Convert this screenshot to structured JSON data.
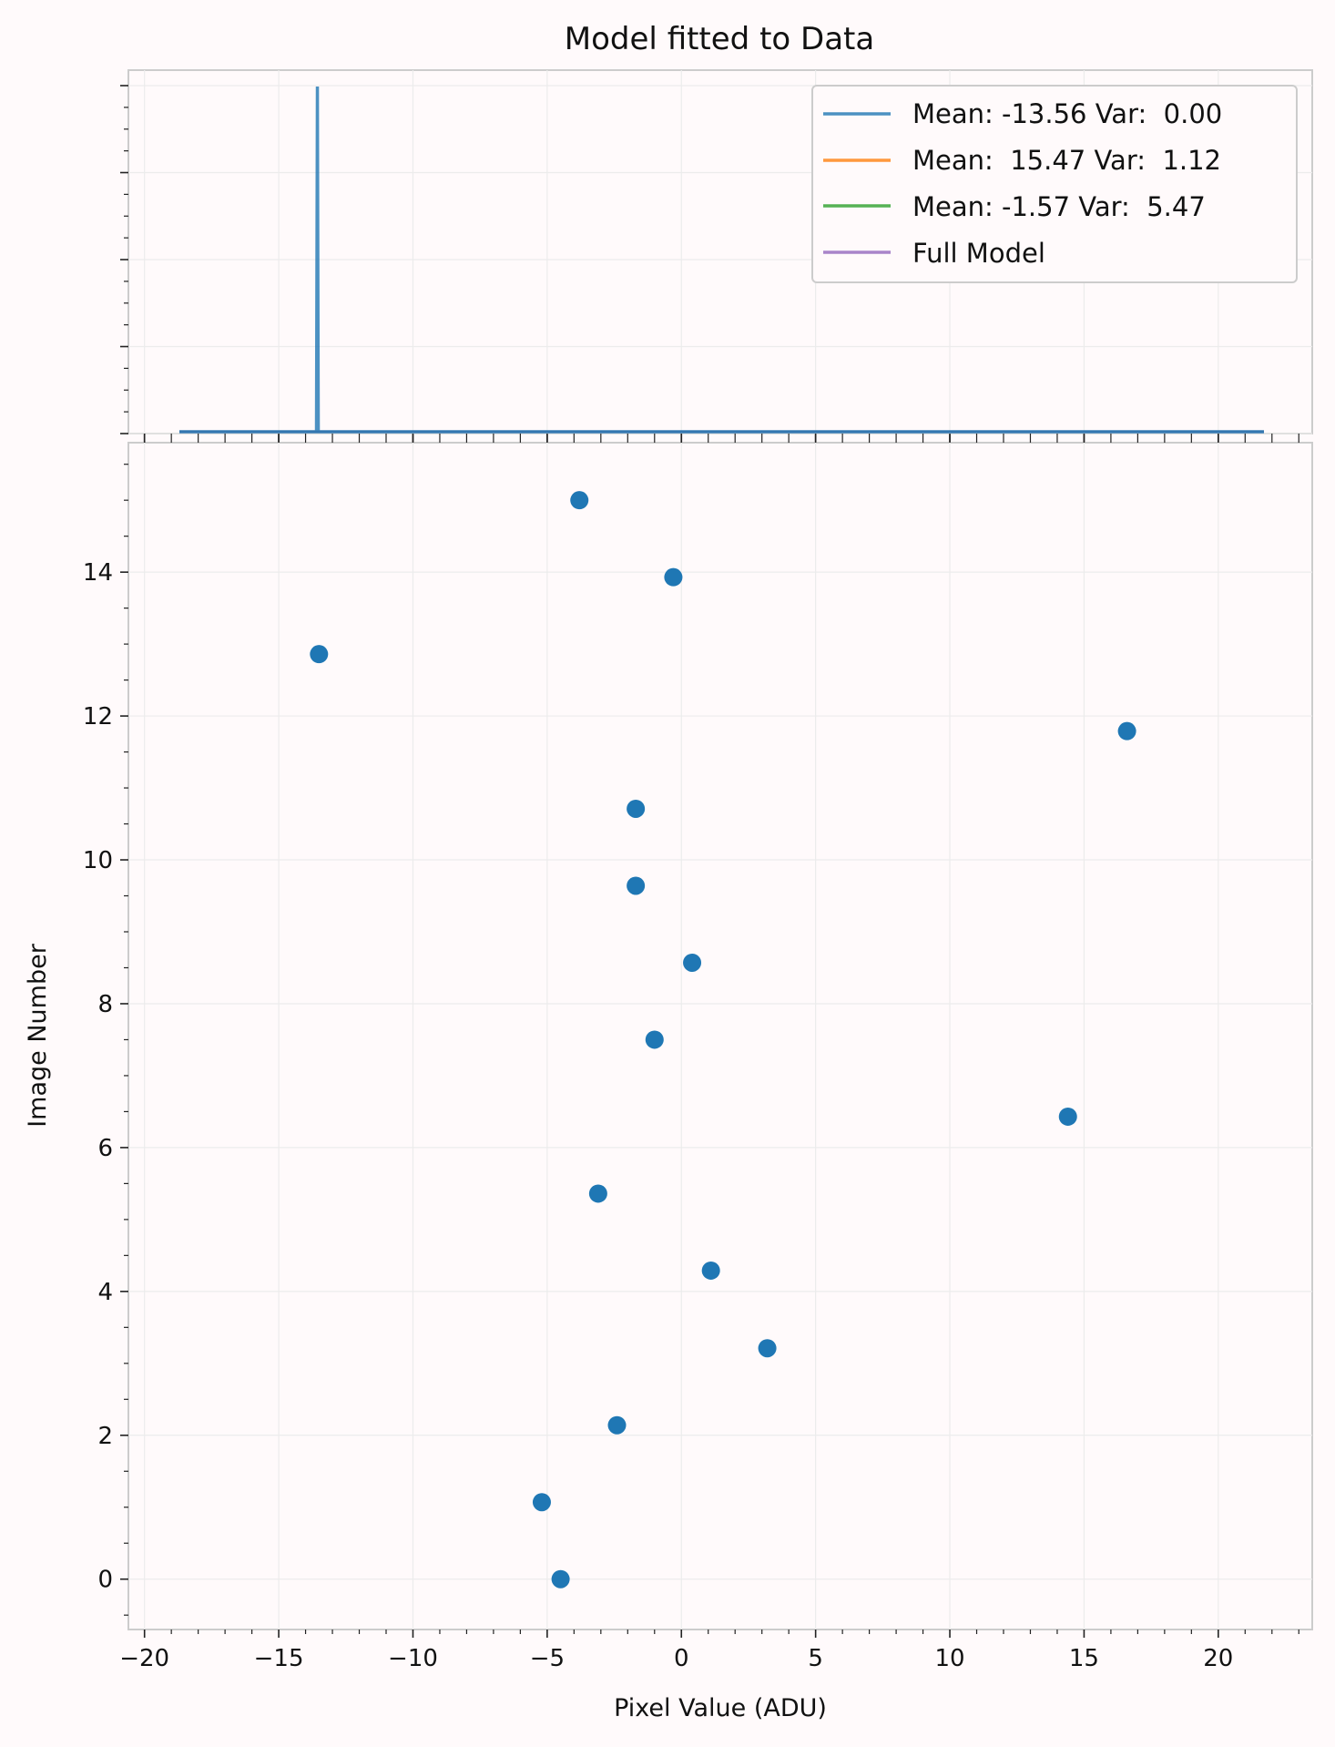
{
  "chart_data": {
    "type": "scatter",
    "title": "Model fitted to Data",
    "xlabel": "Pixel Value (ADU)",
    "ylabel": "Image Number",
    "xlim": [
      -20.6,
      23.5
    ],
    "ylim": [
      -0.7,
      15.8
    ],
    "xticks": [
      -20,
      -15,
      -10,
      -5,
      0,
      5,
      10,
      15,
      20
    ],
    "xtick_labels": [
      "−20",
      "−15",
      "−10",
      "−5",
      "0",
      "5",
      "10",
      "15",
      "20"
    ],
    "yticks": [
      0,
      2,
      4,
      6,
      8,
      10,
      12,
      14
    ],
    "ytick_labels": [
      "0",
      "2",
      "4",
      "6",
      "8",
      "10",
      "12",
      "14"
    ],
    "grid": true,
    "points": [
      {
        "x": -4.5,
        "y": 0
      },
      {
        "x": -5.2,
        "y": 1.07
      },
      {
        "x": -2.4,
        "y": 2.14
      },
      {
        "x": 3.2,
        "y": 3.21
      },
      {
        "x": 1.1,
        "y": 4.29
      },
      {
        "x": -3.1,
        "y": 5.36
      },
      {
        "x": 14.4,
        "y": 6.43
      },
      {
        "x": -1.0,
        "y": 7.5
      },
      {
        "x": 0.4,
        "y": 8.57
      },
      {
        "x": -1.7,
        "y": 9.64
      },
      {
        "x": -1.7,
        "y": 10.71
      },
      {
        "x": 16.6,
        "y": 11.79
      },
      {
        "x": -13.5,
        "y": 12.86
      },
      {
        "x": -0.3,
        "y": 13.93
      },
      {
        "x": -3.8,
        "y": 15.0
      }
    ],
    "point_color": "#1f77b4",
    "top_panel": {
      "type": "line",
      "x_range": [
        -18.7,
        21.7
      ],
      "spike_x": -13.56,
      "legend_position": "top-right",
      "series": [
        {
          "name": "Mean: -13.56 Var:  0.00",
          "color": "#1f77b4"
        },
        {
          "name": "Mean:  15.47 Var:  1.12",
          "color": "#ff7f0e"
        },
        {
          "name": "Mean: -1.57 Var:  5.47",
          "color": "#2ca02c"
        },
        {
          "name": "Full Model",
          "color": "#9467bd"
        }
      ]
    }
  }
}
